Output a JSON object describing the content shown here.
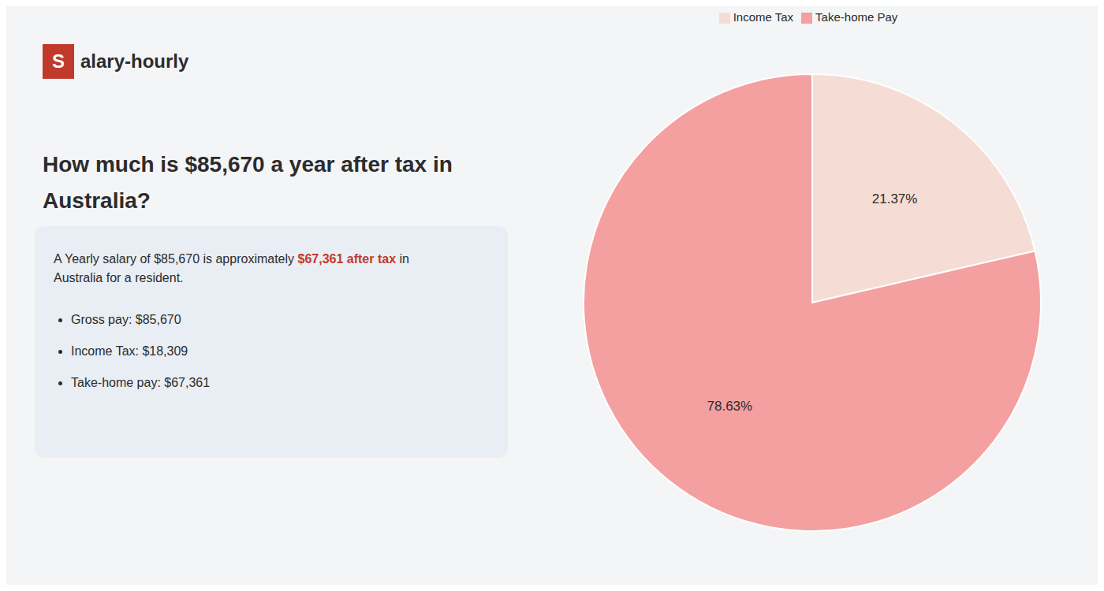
{
  "chart_data": {
    "type": "pie",
    "title": "How much is $85,670 a year after tax in\nAustralia?",
    "annotations": [
      "S",
      "alary-hourly",
      "A Yearly salary of $85,670 is approximately ",
      "$67,361 after tax",
      " in",
      "Australia for a resident.",
      "Gross pay: $85,670",
      "Income Tax: $18,309",
      "Take-home pay: $67,361"
    ],
    "categories": [
      "Income Tax",
      "Take-home Pay"
    ],
    "values": [
      21.37,
      78.63
    ],
    "value_labels": [
      "21.37%",
      "78.63%"
    ],
    "colors": [
      "#f5ddd5",
      "#f4a0a0"
    ],
    "data_labels": true,
    "legend": "top"
  }
}
